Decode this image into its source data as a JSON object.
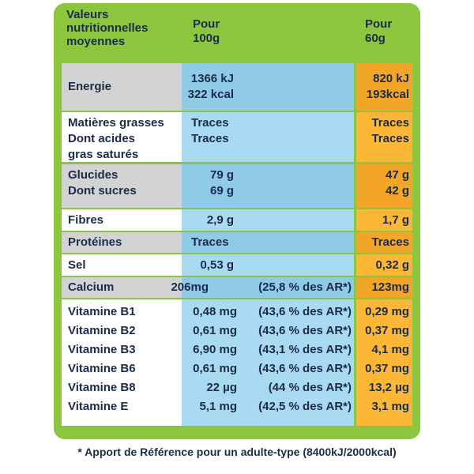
{
  "header": {
    "label": [
      "Valeurs",
      "nutritionnelles",
      "moyennes"
    ],
    "per_100g": [
      "Pour",
      "100g"
    ],
    "per_60g": [
      "Pour",
      "60g"
    ]
  },
  "groups": [
    {
      "labels": [
        "Energie"
      ],
      "per_100g": [
        "1366 kJ",
        "322 kcal"
      ],
      "per_60g": [
        "820 kJ",
        "193kcal"
      ]
    },
    {
      "labels": [
        "Matières grasses",
        "Dont acides",
        "gras saturés"
      ],
      "per_100g": [
        "Traces",
        "Traces"
      ],
      "per_60g": [
        "Traces",
        "Traces"
      ]
    },
    {
      "labels": [
        "Glucides",
        "Dont sucres"
      ],
      "per_100g": [
        "79 g",
        "69 g"
      ],
      "per_60g": [
        "47 g",
        "42 g"
      ]
    },
    {
      "labels": [
        "Fibres"
      ],
      "per_100g": [
        "2,9 g"
      ],
      "per_60g": [
        "1,7 g"
      ]
    },
    {
      "labels": [
        "Protéines"
      ],
      "per_100g": [
        "Traces"
      ],
      "per_60g": [
        "Traces"
      ]
    },
    {
      "labels": [
        "Sel"
      ],
      "per_100g": [
        "0,53 g"
      ],
      "per_60g": [
        "0,32 g"
      ]
    },
    {
      "labels": [
        "Calcium"
      ],
      "per_100g": [
        "206mg"
      ],
      "ar": [
        "(25,8 % des AR*)"
      ],
      "per_60g": [
        "123mg"
      ]
    },
    {
      "labels": [
        "Vitamine B1",
        "Vitamine B2",
        "Vitamine B3",
        "Vitamine B6",
        "Vitamine B8",
        "Vitamine E"
      ],
      "per_100g": [
        "0,48 mg",
        "0,61 mg",
        "6,90 mg",
        "0,61 mg",
        "22 µg",
        "5,1 mg"
      ],
      "ar": [
        "(43,6 % des AR*)",
        "(43,6 % des AR*)",
        "(43,1 % des AR*)",
        "(43,6 % des AR*)",
        "(44 % des AR*)",
        "(42,5 % des AR*)"
      ],
      "per_60g": [
        "0,29 mg",
        "0,37 mg",
        "4,1 mg",
        "0,37 mg",
        "13,2 µg",
        "3,1 mg"
      ]
    }
  ],
  "footnote": "* Apport de Référence pour un adulte-type (8400kJ/2000kcal)"
}
